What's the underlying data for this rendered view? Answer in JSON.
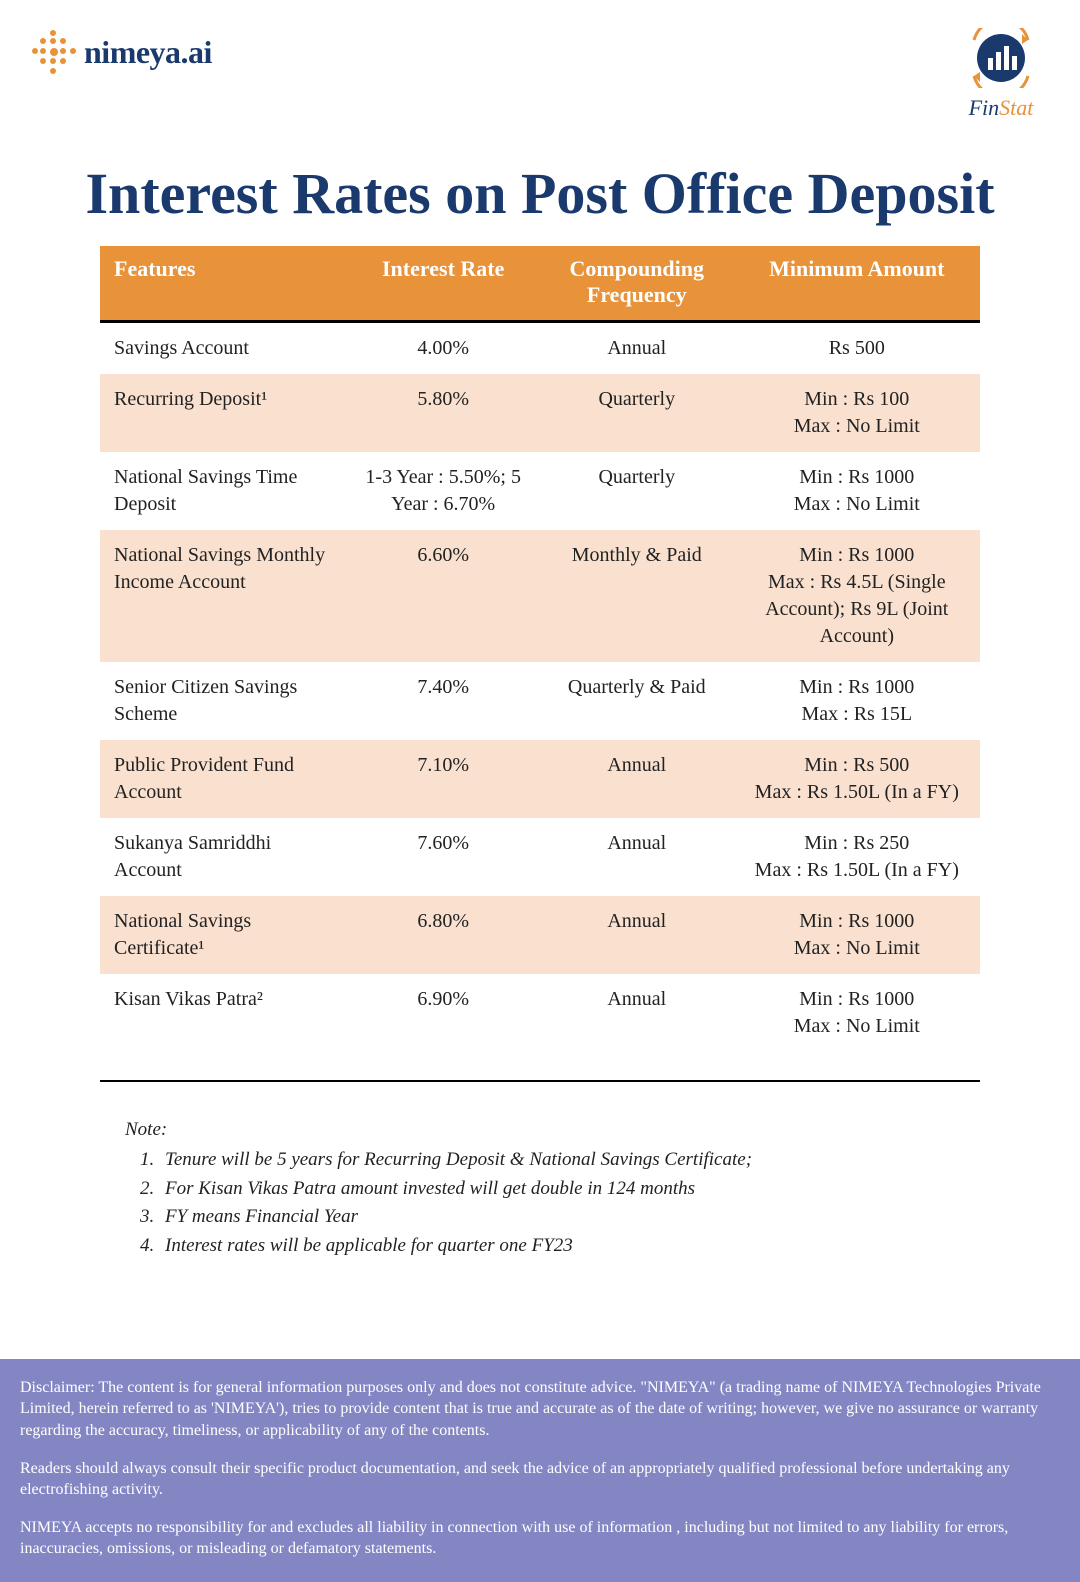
{
  "brand": {
    "left_name": "nimeya",
    "left_suffix": ".ai",
    "dot_color": "#e8923a",
    "text_color": "#1a3a6e",
    "right_fin": "Fin",
    "right_stat": "Stat",
    "circle_fill": "#1a3a6e",
    "arrow_color": "#e8923a"
  },
  "title": "Interest Rates on Post Office Deposit",
  "colors": {
    "header_bg": "#e8923a",
    "header_text": "#ffffff",
    "alt_row_bg": "#f9e0cf",
    "title_color": "#1a3a6e",
    "disclaimer_bg": "#8486c4",
    "body_bg": "#ffffff"
  },
  "table": {
    "columns": [
      "Features",
      "Interest Rate",
      "Compounding Frequency",
      "Minimum Amount"
    ],
    "rows": [
      {
        "feature": "Savings Account",
        "rate": "4.00%",
        "freq": "Annual",
        "amount": "Rs 500"
      },
      {
        "feature": "Recurring Deposit¹",
        "rate": "5.80%",
        "freq": "Quarterly",
        "amount": "Min : Rs 100\nMax : No Limit"
      },
      {
        "feature": "National Savings Time Deposit",
        "rate": "1-3 Year : 5.50%; 5 Year : 6.70%",
        "freq": "Quarterly",
        "amount": "Min : Rs 1000\nMax : No Limit"
      },
      {
        "feature": "National Savings Monthly Income Account",
        "rate": "6.60%",
        "freq": "Monthly & Paid",
        "amount": "Min : Rs 1000\nMax : Rs 4.5L (Single Account); Rs 9L (Joint Account)"
      },
      {
        "feature": "Senior Citizen Savings Scheme",
        "rate": "7.40%",
        "freq": "Quarterly & Paid",
        "amount": "Min : Rs 1000\nMax : Rs 15L"
      },
      {
        "feature": "Public Provident Fund Account",
        "rate": "7.10%",
        "freq": "Annual",
        "amount": "Min : Rs 500\nMax : Rs 1.50L (In a FY)"
      },
      {
        "feature": "Sukanya Samriddhi Account",
        "rate": "7.60%",
        "freq": "Annual",
        "amount": "Min : Rs 250\nMax : Rs 1.50L (In a FY)"
      },
      {
        "feature": "National Savings Certificate¹",
        "rate": "6.80%",
        "freq": "Annual",
        "amount": "Min : Rs 1000\nMax : No Limit"
      },
      {
        "feature": "Kisan Vikas Patra²",
        "rate": "6.90%",
        "freq": "Annual",
        "amount": "Min : Rs 1000\nMax : No Limit"
      }
    ]
  },
  "notes": {
    "heading": "Note:",
    "items": [
      "Tenure will be 5 years for Recurring Deposit & National Savings Certificate;",
      "For Kisan Vikas Patra amount invested will get double in 124 months",
      "FY means Financial Year",
      "Interest rates will be applicable for quarter one FY23"
    ]
  },
  "disclaimer": {
    "p1": "Disclaimer: The content is for general information purposes only and does not constitute advice. \"NIMEYA\" (a trading name of NIMEYA Technologies Private Limited, herein referred to as 'NIMEYA'), tries to provide content that is true and accurate as of the date of writing; however, we give no assurance or warranty regarding the accuracy, timeliness, or applicability of any of the contents.",
    "p2": "Readers should always consult their specific product documentation, and seek the advice of an appropriately qualified professional before undertaking any electrofishing activity.",
    "p3": "NIMEYA accepts no responsibility for and excludes all liability in connection with use of information , including but not limited to any liability for errors, inaccuracies, omissions, or misleading or defamatory statements."
  }
}
